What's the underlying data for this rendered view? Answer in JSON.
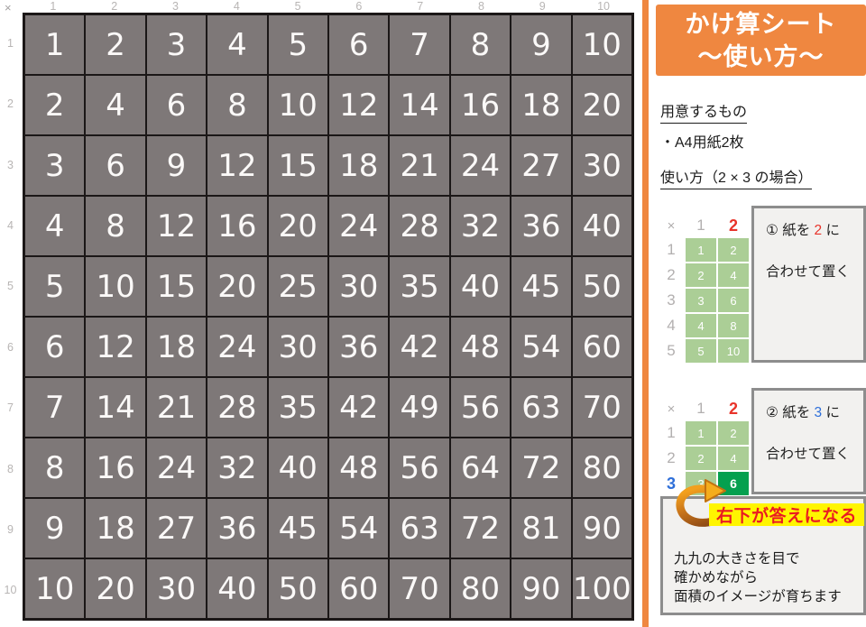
{
  "main_table": {
    "corner": "×",
    "col_labels": [
      "1",
      "2",
      "3",
      "4",
      "5",
      "6",
      "7",
      "8",
      "9",
      "10"
    ],
    "row_labels": [
      "1",
      "2",
      "3",
      "4",
      "5",
      "6",
      "7",
      "8",
      "9",
      "10"
    ],
    "rows": [
      [
        "1",
        "2",
        "3",
        "4",
        "5",
        "6",
        "7",
        "8",
        "9",
        "10"
      ],
      [
        "2",
        "4",
        "6",
        "8",
        "10",
        "12",
        "14",
        "16",
        "18",
        "20"
      ],
      [
        "3",
        "6",
        "9",
        "12",
        "15",
        "18",
        "21",
        "24",
        "27",
        "30"
      ],
      [
        "4",
        "8",
        "12",
        "16",
        "20",
        "24",
        "28",
        "32",
        "36",
        "40"
      ],
      [
        "5",
        "10",
        "15",
        "20",
        "25",
        "30",
        "35",
        "40",
        "45",
        "50"
      ],
      [
        "6",
        "12",
        "18",
        "24",
        "30",
        "36",
        "42",
        "48",
        "54",
        "60"
      ],
      [
        "7",
        "14",
        "21",
        "28",
        "35",
        "42",
        "49",
        "56",
        "63",
        "70"
      ],
      [
        "8",
        "16",
        "24",
        "32",
        "40",
        "48",
        "56",
        "64",
        "72",
        "80"
      ],
      [
        "9",
        "18",
        "27",
        "36",
        "45",
        "54",
        "63",
        "72",
        "81",
        "90"
      ],
      [
        "10",
        "20",
        "30",
        "40",
        "50",
        "60",
        "70",
        "80",
        "90",
        "100"
      ]
    ]
  },
  "sidebar": {
    "title_line1": "かけ算シート",
    "title_line2": "～使い方～",
    "prepare_heading": "用意するもの",
    "prepare_item": "・A4用紙2枚",
    "usage_heading": "使い方（2 × 3 の場合）",
    "step1": {
      "prefix": "① 紙を ",
      "accent": "2",
      "suffix": " に",
      "line2": "合わせて置く"
    },
    "step2": {
      "prefix": "② 紙を ",
      "accent": "3",
      "suffix": " に",
      "line2": "合わせて置く"
    },
    "answer_note": "右下が答えになる",
    "footer_lines": [
      "九九の大きさを目で",
      "確かめながら",
      "面積のイメージが育ちます"
    ],
    "mini_table_1": {
      "corner": "×",
      "col_labels": [
        "1",
        "2"
      ],
      "accent_col": 1,
      "row_labels": [
        "1",
        "2",
        "3",
        "4",
        "5"
      ],
      "accent_row": -1,
      "rows": [
        [
          "1",
          "2"
        ],
        [
          "2",
          "4"
        ],
        [
          "3",
          "6"
        ],
        [
          "4",
          "8"
        ],
        [
          "5",
          "10"
        ]
      ],
      "answer_cell": null
    },
    "mini_table_2": {
      "corner": "×",
      "col_labels": [
        "1",
        "2"
      ],
      "accent_col": 1,
      "row_labels": [
        "1",
        "2",
        "3"
      ],
      "accent_row": 2,
      "rows": [
        [
          "1",
          "2"
        ],
        [
          "2",
          "4"
        ],
        [
          "3",
          "6"
        ]
      ],
      "answer_cell": {
        "row": 2,
        "col": 1
      }
    }
  },
  "colors": {
    "accent_orange": "#ef8740",
    "grid_cell_gray": "#7e7878",
    "mini_green": "#abce96",
    "answer_green": "#05a04f",
    "accent_red": "#e8332a",
    "accent_blue": "#2e6fd9",
    "note_yellow": "#fff500",
    "note_red": "#ea1b22"
  }
}
